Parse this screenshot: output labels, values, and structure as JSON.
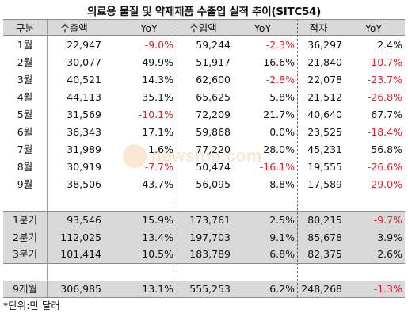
{
  "title": "의료용 물질 및 약제제품 수출입 실적 추이(SITC54)",
  "headers": [
    "구분",
    "수출액",
    "YoY",
    "수입액",
    "YoY",
    "적자",
    "YoY"
  ],
  "monthly": [
    {
      "label": "1월",
      "export": "22,947",
      "export_yoy": "-9.0%",
      "import": "59,244",
      "import_yoy": "-2.3%",
      "deficit": "36,297",
      "deficit_yoy": "2.4%"
    },
    {
      "label": "2월",
      "export": "30,077",
      "export_yoy": "49.9%",
      "import": "51,917",
      "import_yoy": "16.6%",
      "deficit": "21,840",
      "deficit_yoy": "-10.7%"
    },
    {
      "label": "3월",
      "export": "40,521",
      "export_yoy": "14.3%",
      "import": "62,600",
      "import_yoy": "-2.8%",
      "deficit": "22,078",
      "deficit_yoy": "-23.7%"
    },
    {
      "label": "4월",
      "export": "44,113",
      "export_yoy": "35.1%",
      "import": "65,625",
      "import_yoy": "5.8%",
      "deficit": "21,512",
      "deficit_yoy": "-26.8%"
    },
    {
      "label": "5월",
      "export": "31,569",
      "export_yoy": "-10.1%",
      "import": "72,209",
      "import_yoy": "21.7%",
      "deficit": "40,640",
      "deficit_yoy": "67.7%"
    },
    {
      "label": "6월",
      "export": "36,343",
      "export_yoy": "17.1%",
      "import": "59,868",
      "import_yoy": "0.0%",
      "deficit": "23,525",
      "deficit_yoy": "-18.4%"
    },
    {
      "label": "7월",
      "export": "31,989",
      "export_yoy": "1.6%",
      "import": "77,220",
      "import_yoy": "28.0%",
      "deficit": "45,231",
      "deficit_yoy": "56.8%"
    },
    {
      "label": "8월",
      "export": "30,919",
      "export_yoy": "-7.7%",
      "import": "50,474",
      "import_yoy": "-16.1%",
      "deficit": "19,555",
      "deficit_yoy": "-26.6%"
    },
    {
      "label": "9월",
      "export": "38,506",
      "export_yoy": "43.7%",
      "import": "56,095",
      "import_yoy": "8.8%",
      "deficit": "17,589",
      "deficit_yoy": "-29.0%"
    }
  ],
  "quarterly": [
    {
      "label": "1분기",
      "export": "93,546",
      "export_yoy": "15.9%",
      "import": "173,761",
      "import_yoy": "2.5%",
      "deficit": "80,215",
      "deficit_yoy": "-9.7%"
    },
    {
      "label": "2분기",
      "export": "112,025",
      "export_yoy": "13.4%",
      "import": "197,703",
      "import_yoy": "9.1%",
      "deficit": "85,678",
      "deficit_yoy": "3.9%"
    },
    {
      "label": "3분기",
      "export": "101,414",
      "export_yoy": "10.5%",
      "import": "183,789",
      "import_yoy": "6.8%",
      "deficit": "82,375",
      "deficit_yoy": "2.6%"
    }
  ],
  "total": {
    "label": "9개월",
    "export": "306,985",
    "export_yoy": "13.1%",
    "import": "555,253",
    "import_yoy": "6.2%",
    "deficit": "248,268",
    "deficit_yoy": "-1.3%"
  },
  "footnote": "*단위:만 달러",
  "watermark": "newsmp.com",
  "colors": {
    "negative": "#e0202a",
    "header_bg": "#d9d9d9",
    "watermark": "#e8821e"
  }
}
